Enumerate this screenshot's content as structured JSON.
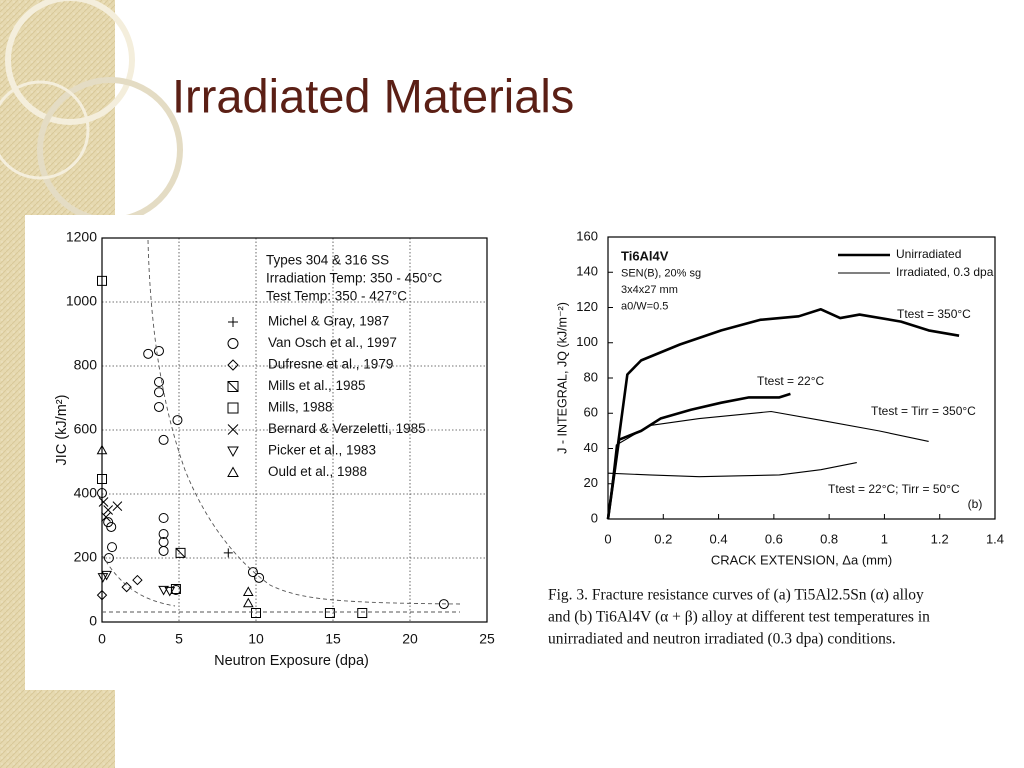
{
  "title": "Irradiated Materials",
  "chart_data": [
    {
      "type": "scatter",
      "x_label": "Neutron Exposure (dpa)",
      "y_label": "JIC (kJ/m²)",
      "annotations": [
        "Types 304 & 316 SS",
        "Irradiation Temp: 350 - 450°C",
        "Test Temp: 350 - 427°C"
      ],
      "xlim": [
        0,
        25
      ],
      "ylim": [
        0,
        1200
      ],
      "xticks": [
        0,
        5,
        10,
        15,
        20,
        25
      ],
      "yticks": [
        0,
        200,
        400,
        600,
        800,
        1000,
        1200
      ],
      "grid": true,
      "series": [
        {
          "name": "Michel & Gray, 1987",
          "marker": "plus",
          "color": "#000000",
          "x": [
            8.2
          ],
          "values": [
            216
          ]
        },
        {
          "name": "Van Osch et al., 1997",
          "marker": "circle",
          "color": "#000000",
          "x": [
            0,
            0.4,
            0.6,
            0.65,
            0.45,
            3,
            3.7,
            3.7,
            3.7,
            3.7,
            4,
            4.9,
            4,
            4,
            4,
            4,
            4.8,
            9.8,
            10.2,
            22.2
          ],
          "values": [
            403,
            312,
            297,
            234,
            200,
            838,
            847,
            750,
            718,
            672,
            569,
            631,
            325,
            275,
            250,
            222,
            100,
            156,
            138,
            56
          ]
        },
        {
          "name": "Dufresne et al., 1979",
          "marker": "diamond",
          "color": "#000000",
          "x": [
            0,
            1.6,
            2.3
          ],
          "values": [
            84,
            109,
            131
          ]
        },
        {
          "name": "Mills et al., 1985",
          "marker": "boxed-slash",
          "color": "#000000",
          "x": [
            5.1
          ],
          "values": [
            216
          ]
        },
        {
          "name": "Mills, 1988",
          "marker": "square",
          "color": "#000000",
          "x": [
            0,
            0,
            4.8,
            10,
            14.8,
            16.9
          ],
          "values": [
            1066,
            447,
            103,
            28,
            28,
            28
          ]
        },
        {
          "name": "Bernard & Verzeletti, 1985",
          "marker": "cross",
          "color": "#000000",
          "x": [
            0.1,
            0.4,
            1,
            0.26
          ],
          "values": [
            375,
            350,
            362,
            328
          ]
        },
        {
          "name": "Picker et al., 1983",
          "marker": "tri-down",
          "color": "#000000",
          "x": [
            0.06,
            0.3,
            4,
            4.4
          ],
          "values": [
            140,
            147,
            100,
            97
          ]
        },
        {
          "name": "Ould et al., 1988",
          "marker": "tri-up",
          "color": "#000000",
          "x": [
            0,
            9.5,
            9.5
          ],
          "values": [
            537,
            94,
            59
          ]
        }
      ]
    },
    {
      "type": "line",
      "x_label": "CRACK EXTENSION, Δa (mm)",
      "y_label": "J - INTEGRAL, JQ (kJ/m⁻²)",
      "annotations": [
        "Ti6Al4V",
        "SEN(B), 20% sg",
        "3x4x27 mm",
        "a0/W=0.5"
      ],
      "panel_label": "(b)",
      "xlim": [
        0,
        1.4
      ],
      "ylim": [
        0,
        160
      ],
      "xticks": [
        0,
        0.2,
        0.4,
        0.6,
        0.8,
        1,
        1.2,
        1.4
      ],
      "yticks": [
        0,
        20,
        40,
        60,
        80,
        100,
        120,
        140,
        160
      ],
      "series": [
        {
          "name": "Unirradiated",
          "color": "#000000",
          "width": 2.6,
          "curves": [
            {
              "label": "Ttest = 350°C",
              "x": [
                0,
                0.07,
                0.12,
                0.26,
                0.41,
                0.55,
                0.69,
                0.77,
                0.84,
                0.91,
                1.06,
                1.16,
                1.27
              ],
              "values": [
                0,
                82,
                90,
                99,
                107,
                113,
                115,
                119,
                114,
                116,
                112,
                107,
                104
              ]
            },
            {
              "label": "Ttest = 22°C",
              "x": [
                0,
                0.04,
                0.12,
                0.19,
                0.3,
                0.41,
                0.51,
                0.62,
                0.66
              ],
              "values": [
                0,
                45,
                50,
                57,
                62,
                66,
                69,
                69,
                71
              ]
            }
          ]
        },
        {
          "name": "Irradiated, 0.3 dpa",
          "color": "#000000",
          "width": 1.1,
          "curves": [
            {
              "label": "Ttest = Tirr = 350°C",
              "x": [
                0,
                0.03,
                0.15,
                0.33,
                0.59,
                0.77,
                0.98,
                1.16
              ],
              "values": [
                0,
                42,
                53,
                57,
                61,
                56,
                50,
                44
              ]
            },
            {
              "label": "Ttest = 22°C; Tirr = 50°C",
              "x": [
                0,
                0.15,
                0.33,
                0.62,
                0.77,
                0.9
              ],
              "values": [
                26,
                25,
                24,
                25,
                28,
                32
              ]
            }
          ]
        }
      ]
    }
  ],
  "caption": [
    "Fig. 3. Fracture resistance curves of (a) Ti5Al2.5Sn (α) alloy",
    "and (b) Ti6Al4V (α + β) alloy at different test temperatures in",
    "unirradiated and neutron irradiated (0.3 dpa) conditions."
  ]
}
